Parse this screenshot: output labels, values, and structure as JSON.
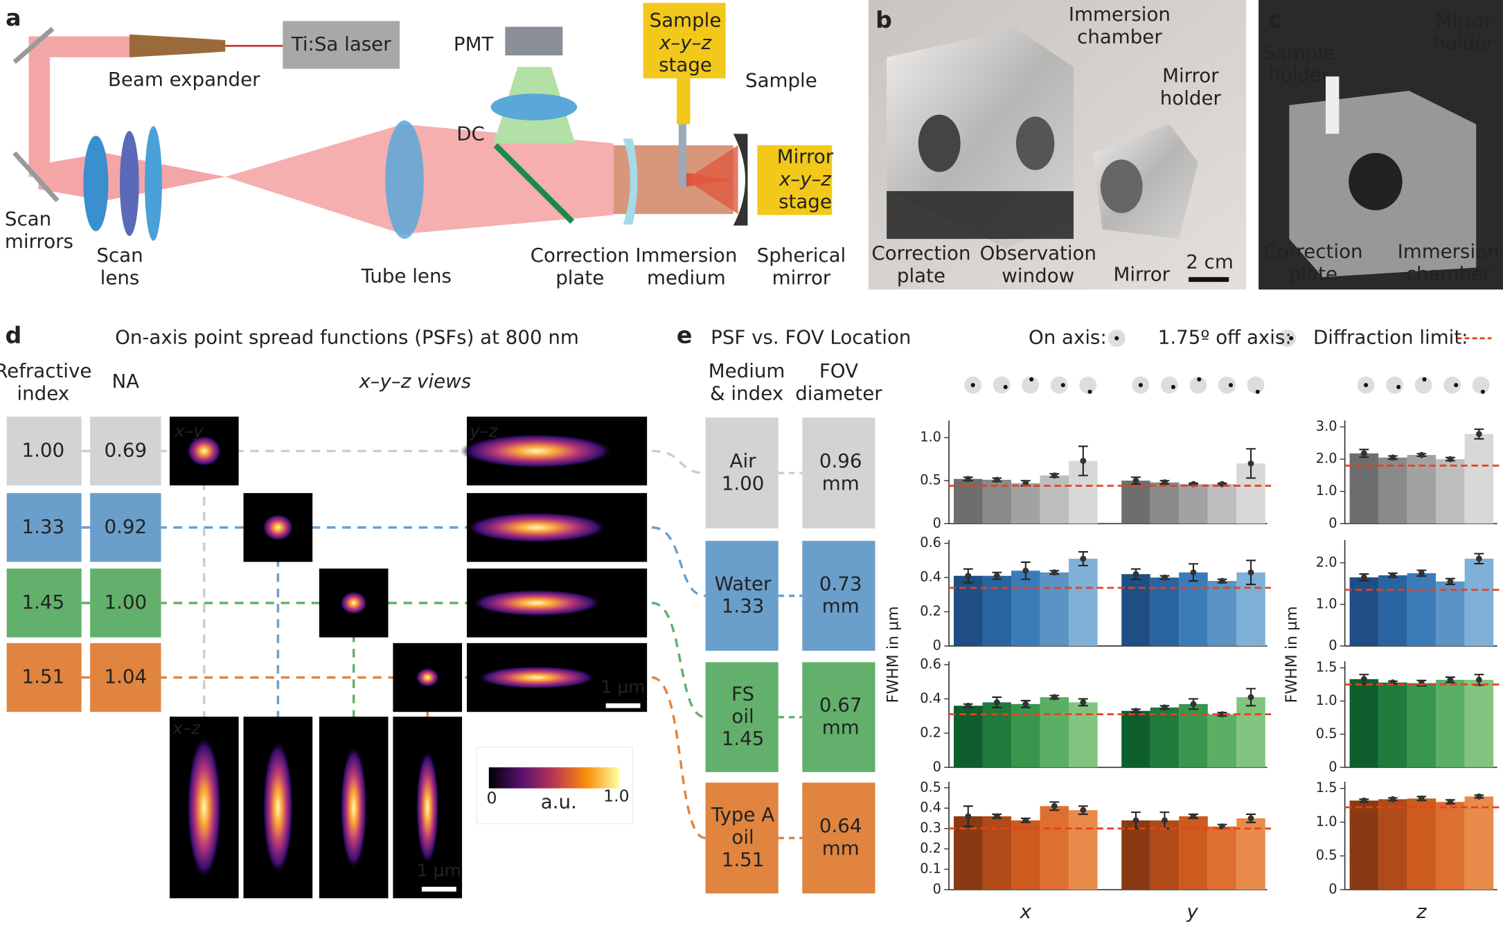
{
  "panel_labels": [
    "a",
    "b",
    "c",
    "d",
    "e"
  ],
  "a": {
    "laser": "Ti:Sa laser",
    "expander": "Beam expander",
    "pmt": "PMT",
    "sample_stage": [
      "Sample",
      "x–y–z",
      "stage"
    ],
    "sample": "Sample",
    "dc": "DC",
    "mirror_stage": [
      "Mirror",
      "x–y–z",
      "stage"
    ],
    "scan_mirrors": [
      "Scan",
      "mirrors"
    ],
    "scan_lens": [
      "Scan",
      "lens"
    ],
    "tube_lens": "Tube lens",
    "correction_plate": [
      "Correction",
      "plate"
    ],
    "immersion_medium": [
      "Immersion",
      "medium"
    ],
    "spherical_mirror": [
      "Spherical",
      "mirror"
    ]
  },
  "b": {
    "immersion_chamber": [
      "Immersion",
      "chamber"
    ],
    "mirror_holder": [
      "Mirror",
      "holder"
    ],
    "correction_plate": [
      "Correction",
      "plate"
    ],
    "observation_window": [
      "Observation",
      "window"
    ],
    "mirror": "Mirror",
    "scale": "2 cm"
  },
  "c": {
    "mirror_holder": [
      "Mirror",
      "holder"
    ],
    "sample_holder": [
      "Sample",
      "holder"
    ],
    "correction_plate": [
      "Correction",
      "plate"
    ],
    "immersion_chamber": [
      "Immersion",
      "chamber"
    ]
  },
  "d": {
    "title": "On-axis point spread functions (PSFs) at 800 nm",
    "col_headers": [
      [
        "Refractive",
        "index"
      ],
      [
        "NA"
      ]
    ],
    "views": "x–y–z views",
    "rows": [
      [
        "1.00",
        "0.69"
      ],
      [
        "1.33",
        "0.92"
      ],
      [
        "1.45",
        "1.00"
      ],
      [
        "1.51",
        "1.04"
      ]
    ],
    "xy": "x–y",
    "yz": "y–z",
    "xz": "x–z",
    "scale": "1 µm",
    "colorbar": {
      "min": "0",
      "unit": "a.u.",
      "max": "1.0"
    }
  },
  "e": {
    "title": "PSF vs. FOV Location",
    "legend": [
      "On axis:",
      "1.75º off axis:",
      "Diffraction limit:"
    ],
    "col_headers": [
      [
        "Medium",
        "& index"
      ],
      [
        "FOV",
        "diameter"
      ]
    ],
    "rows": [
      {
        "medium": [
          "Air",
          "1.00"
        ],
        "fov": [
          "0.96",
          "mm"
        ]
      },
      {
        "medium": [
          "Water",
          "1.33"
        ],
        "fov": [
          "0.73",
          "mm"
        ]
      },
      {
        "medium": [
          "FS",
          "oil",
          "1.45"
        ],
        "fov": [
          "0.67",
          "mm"
        ]
      },
      {
        "medium": [
          "Type A",
          "oil",
          "1.51"
        ],
        "fov": [
          "0.64",
          "mm"
        ]
      }
    ],
    "ylabel": "FWHM in µm",
    "axis_labels": [
      "x",
      "y",
      "z"
    ]
  },
  "chart_data": [
    {
      "type": "bar",
      "values": [
        0.52,
        0.51,
        0.47,
        0.56,
        0.73,
        0.5,
        0.48,
        0.46,
        0.46,
        0.7
      ],
      "errors": [
        0.02,
        0.02,
        0.03,
        0.02,
        0.17,
        0.04,
        0.02,
        0.01,
        0.01,
        0.17
      ],
      "colors": [
        "#6e6e6e",
        "#8a8a8a",
        "#a2a2a2",
        "#bdbdbd",
        "#d8d8d8"
      ],
      "ylim": [
        0,
        1.2
      ],
      "yticks": [
        0,
        0.5,
        {
          "value": 1,
          "label": "1.0"
        }
      ],
      "diffraction_limit": 0.44
    },
    {
      "type": "bar",
      "values": [
        2.18,
        2.05,
        2.13,
        2.0,
        2.78
      ],
      "errors": [
        0.12,
        0.05,
        0.04,
        0.05,
        0.15
      ],
      "colors": [
        "#6e6e6e",
        "#8a8a8a",
        "#a2a2a2",
        "#bdbdbd",
        "#d8d8d8"
      ],
      "ylim": [
        0,
        3.2
      ],
      "yticks": [
        0,
        {
          "value": 1,
          "label": "1.0"
        },
        {
          "value": 2,
          "label": "2.0"
        },
        {
          "value": 3,
          "label": "3.0"
        }
      ],
      "diffraction_limit": 1.8
    },
    {
      "type": "bar",
      "values": [
        0.41,
        0.41,
        0.44,
        0.43,
        0.51,
        0.42,
        0.4,
        0.43,
        0.38,
        0.43
      ],
      "errors": [
        0.04,
        0.02,
        0.05,
        0.01,
        0.04,
        0.03,
        0.01,
        0.05,
        0.01,
        0.07
      ],
      "colors": [
        "#1f4e85",
        "#2a64a0",
        "#3b7cb8",
        "#5a93c4",
        "#7fb0d8"
      ],
      "ylim": [
        0,
        0.62
      ],
      "yticks": [
        0,
        0.2,
        0.4,
        0.6
      ],
      "diffraction_limit": 0.34
    },
    {
      "type": "bar",
      "values": [
        1.65,
        1.7,
        1.75,
        1.55,
        2.1
      ],
      "errors": [
        0.08,
        0.05,
        0.07,
        0.07,
        0.12
      ],
      "colors": [
        "#1f4e85",
        "#2a64a0",
        "#3b7cb8",
        "#5a93c4",
        "#7fb0d8"
      ],
      "ylim": [
        0,
        2.55
      ],
      "yticks": [
        0,
        {
          "value": 1,
          "label": "1.0"
        },
        {
          "value": 2,
          "label": "2.0"
        }
      ],
      "diffraction_limit": 1.35
    },
    {
      "type": "bar",
      "values": [
        0.36,
        0.38,
        0.37,
        0.41,
        0.38,
        0.33,
        0.35,
        0.37,
        0.31,
        0.41
      ],
      "errors": [
        0.01,
        0.03,
        0.02,
        0.01,
        0.02,
        0.01,
        0.01,
        0.03,
        0.01,
        0.05
      ],
      "colors": [
        "#0e5e2e",
        "#1f7a3c",
        "#3a954e",
        "#5aaf64",
        "#82c47f"
      ],
      "ylim": [
        0,
        0.62
      ],
      "yticks": [
        0,
        0.2,
        0.4,
        0.6
      ],
      "diffraction_limit": 0.31
    },
    {
      "type": "bar",
      "values": [
        1.33,
        1.28,
        1.27,
        1.32,
        1.32
      ],
      "errors": [
        0.07,
        0.02,
        0.04,
        0.04,
        0.08
      ],
      "colors": [
        "#0e5e2e",
        "#1f7a3c",
        "#3a954e",
        "#5aaf64",
        "#82c47f"
      ],
      "ylim": [
        0,
        1.6
      ],
      "yticks": [
        0,
        0.5,
        {
          "value": 1,
          "label": "1.0"
        },
        1.5
      ],
      "diffraction_limit": 1.25
    },
    {
      "type": "bar",
      "values": [
        0.36,
        0.36,
        0.34,
        0.41,
        0.39,
        0.34,
        0.34,
        0.36,
        0.31,
        0.35
      ],
      "errors": [
        0.05,
        0.01,
        0.01,
        0.02,
        0.02,
        0.04,
        0.04,
        0.01,
        0.01,
        0.02
      ],
      "colors": [
        "#8a3a12",
        "#b04a18",
        "#cd5a1f",
        "#dd6f30",
        "#e88a4a"
      ],
      "ylim": [
        0,
        0.53
      ],
      "yticks": [
        0,
        0.1,
        0.2,
        0.3,
        0.4,
        0.5
      ],
      "diffraction_limit": 0.3
    },
    {
      "type": "bar",
      "values": [
        1.32,
        1.34,
        1.35,
        1.3,
        1.38
      ],
      "errors": [
        0.02,
        0.02,
        0.03,
        0.03,
        0.02
      ],
      "colors": [
        "#8a3a12",
        "#b04a18",
        "#cd5a1f",
        "#dd6f30",
        "#e88a4a"
      ],
      "ylim": [
        0,
        1.6
      ],
      "yticks": [
        0,
        0.5,
        {
          "value": 1,
          "label": "1.0"
        },
        1.5
      ],
      "diffraction_limit": 1.22
    }
  ]
}
